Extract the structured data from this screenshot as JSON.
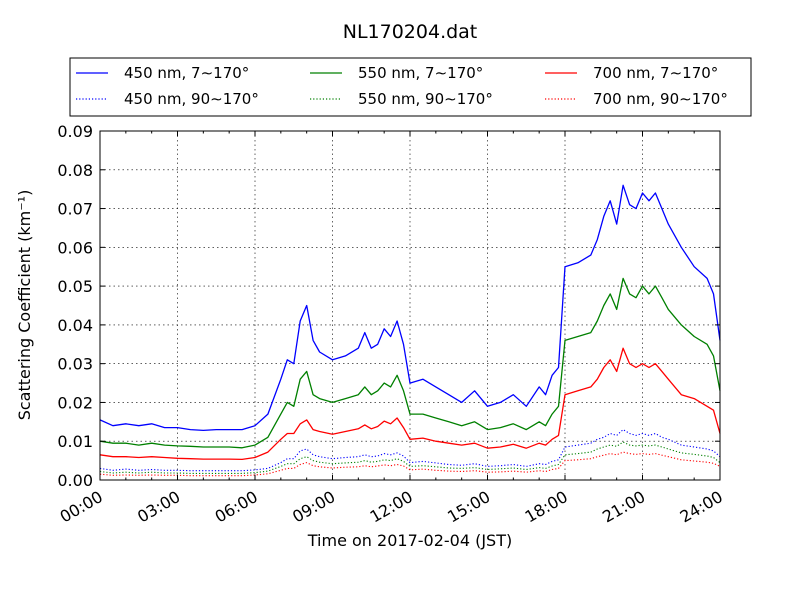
{
  "chart_data": {
    "type": "line",
    "title": "NL170204.dat",
    "xlabel": "Time on 2017-02-04 (JST)",
    "ylabel": "Scattering Coefficient (km⁻¹)",
    "xlim": [
      0,
      24
    ],
    "ylim": [
      0,
      0.09
    ],
    "xtick_labels": [
      "00:00",
      "03:00",
      "06:00",
      "09:00",
      "12:00",
      "15:00",
      "18:00",
      "21:00",
      "24:00"
    ],
    "ytick_labels": [
      "0.00",
      "0.01",
      "0.02",
      "0.03",
      "0.04",
      "0.05",
      "0.06",
      "0.07",
      "0.08",
      "0.09"
    ],
    "grid": true,
    "legend_position": "top, above plot, 3 columns",
    "x_hours": [
      0,
      0.5,
      1,
      1.5,
      2,
      2.5,
      3,
      3.5,
      4,
      4.5,
      5,
      5.5,
      6,
      6.5,
      7,
      7.25,
      7.5,
      7.75,
      8,
      8.25,
      8.5,
      9,
      9.5,
      10,
      10.25,
      10.5,
      10.75,
      11,
      11.25,
      11.5,
      11.75,
      12,
      12.5,
      13,
      13.5,
      14,
      14.5,
      15,
      15.5,
      16,
      16.5,
      17,
      17.25,
      17.5,
      17.75,
      18,
      18.5,
      19,
      19.25,
      19.5,
      19.75,
      20,
      20.25,
      20.5,
      20.75,
      21,
      21.25,
      21.5,
      21.75,
      22,
      22.5,
      23,
      23.5,
      23.75,
      24
    ],
    "series": [
      {
        "name": "450 nm, 7∼170°",
        "color": "#0000ff",
        "style": "solid",
        "values": [
          0.0155,
          0.014,
          0.0145,
          0.014,
          0.0145,
          0.0135,
          0.0135,
          0.013,
          0.0128,
          0.013,
          0.013,
          0.013,
          0.014,
          0.017,
          0.026,
          0.031,
          0.03,
          0.041,
          0.045,
          0.036,
          0.033,
          0.031,
          0.032,
          0.034,
          0.038,
          0.034,
          0.035,
          0.039,
          0.037,
          0.041,
          0.035,
          0.025,
          0.026,
          0.024,
          0.022,
          0.02,
          0.023,
          0.019,
          0.02,
          0.022,
          0.019,
          0.024,
          0.022,
          0.027,
          0.029,
          0.055,
          0.056,
          0.058,
          0.062,
          0.068,
          0.072,
          0.066,
          0.076,
          0.071,
          0.07,
          0.074,
          0.072,
          0.074,
          0.07,
          0.066,
          0.06,
          0.055,
          0.052,
          0.048,
          0.036
        ]
      },
      {
        "name": "550 nm, 7∼170°",
        "color": "#008000",
        "style": "solid",
        "values": [
          0.01,
          0.0095,
          0.0095,
          0.009,
          0.0095,
          0.009,
          0.0088,
          0.0087,
          0.0085,
          0.0085,
          0.0085,
          0.0083,
          0.009,
          0.011,
          0.017,
          0.02,
          0.019,
          0.026,
          0.028,
          0.022,
          0.021,
          0.02,
          0.021,
          0.022,
          0.024,
          0.022,
          0.023,
          0.025,
          0.024,
          0.027,
          0.023,
          0.017,
          0.017,
          0.016,
          0.015,
          0.014,
          0.015,
          0.013,
          0.0135,
          0.0145,
          0.013,
          0.015,
          0.014,
          0.017,
          0.019,
          0.036,
          0.037,
          0.038,
          0.041,
          0.045,
          0.048,
          0.044,
          0.052,
          0.048,
          0.047,
          0.05,
          0.048,
          0.05,
          0.047,
          0.044,
          0.04,
          0.037,
          0.035,
          0.032,
          0.023
        ]
      },
      {
        "name": "700 nm, 7∼170°",
        "color": "#ff0000",
        "style": "solid",
        "values": [
          0.0065,
          0.006,
          0.006,
          0.0058,
          0.006,
          0.0058,
          0.0056,
          0.0055,
          0.0054,
          0.0054,
          0.0054,
          0.0053,
          0.0058,
          0.0072,
          0.0105,
          0.012,
          0.012,
          0.0145,
          0.0155,
          0.013,
          0.0125,
          0.0118,
          0.0125,
          0.0132,
          0.0142,
          0.0132,
          0.0138,
          0.0152,
          0.0145,
          0.016,
          0.0135,
          0.0105,
          0.0108,
          0.01,
          0.0095,
          0.009,
          0.0095,
          0.0082,
          0.0085,
          0.0092,
          0.0082,
          0.0095,
          0.009,
          0.0105,
          0.0115,
          0.022,
          0.023,
          0.024,
          0.026,
          0.029,
          0.031,
          0.028,
          0.034,
          0.03,
          0.029,
          0.03,
          0.029,
          0.03,
          0.028,
          0.026,
          0.022,
          0.021,
          0.019,
          0.018,
          0.012
        ]
      },
      {
        "name": "450 nm, 90∼170°",
        "color": "#0000ff",
        "style": "dotted",
        "values": [
          0.003,
          0.0025,
          0.0028,
          0.0025,
          0.0027,
          0.0025,
          0.0025,
          0.0024,
          0.0024,
          0.0024,
          0.0024,
          0.0024,
          0.0026,
          0.003,
          0.0045,
          0.0055,
          0.0055,
          0.0075,
          0.008,
          0.0065,
          0.006,
          0.0055,
          0.0058,
          0.006,
          0.0065,
          0.006,
          0.0062,
          0.0068,
          0.0065,
          0.007,
          0.0062,
          0.0045,
          0.0048,
          0.0044,
          0.004,
          0.0038,
          0.0042,
          0.0035,
          0.0037,
          0.004,
          0.0035,
          0.0042,
          0.004,
          0.0048,
          0.0052,
          0.0085,
          0.009,
          0.0095,
          0.0105,
          0.011,
          0.012,
          0.0115,
          0.013,
          0.012,
          0.0115,
          0.012,
          0.0115,
          0.012,
          0.011,
          0.0105,
          0.009,
          0.0085,
          0.008,
          0.0075,
          0.006
        ]
      },
      {
        "name": "550 nm, 90∼170°",
        "color": "#008000",
        "style": "dotted",
        "values": [
          0.0022,
          0.0018,
          0.002,
          0.0018,
          0.002,
          0.0018,
          0.0018,
          0.0017,
          0.0017,
          0.0017,
          0.0017,
          0.0017,
          0.0019,
          0.0023,
          0.0035,
          0.0042,
          0.0042,
          0.0055,
          0.006,
          0.005,
          0.0046,
          0.0042,
          0.0044,
          0.0046,
          0.005,
          0.0046,
          0.0048,
          0.0052,
          0.005,
          0.0055,
          0.0048,
          0.0035,
          0.0037,
          0.0034,
          0.0031,
          0.003,
          0.0032,
          0.0027,
          0.0029,
          0.0031,
          0.0027,
          0.0032,
          0.003,
          0.0036,
          0.004,
          0.0065,
          0.0068,
          0.0072,
          0.008,
          0.0085,
          0.009,
          0.0087,
          0.0098,
          0.009,
          0.0088,
          0.009,
          0.0088,
          0.009,
          0.0085,
          0.008,
          0.007,
          0.0066,
          0.0062,
          0.0058,
          0.0045
        ]
      },
      {
        "name": "700 nm, 90∼170°",
        "color": "#ff0000",
        "style": "dotted",
        "values": [
          0.0015,
          0.0012,
          0.0013,
          0.0012,
          0.0013,
          0.0012,
          0.0012,
          0.0011,
          0.0011,
          0.0011,
          0.0011,
          0.0011,
          0.0013,
          0.0016,
          0.0025,
          0.003,
          0.003,
          0.004,
          0.0045,
          0.0037,
          0.0034,
          0.0031,
          0.0033,
          0.0034,
          0.0037,
          0.0034,
          0.0036,
          0.0039,
          0.0037,
          0.004,
          0.0036,
          0.0026,
          0.0028,
          0.0025,
          0.0023,
          0.0022,
          0.0024,
          0.002,
          0.0021,
          0.0023,
          0.002,
          0.0024,
          0.0022,
          0.0027,
          0.003,
          0.005,
          0.0052,
          0.0055,
          0.006,
          0.0064,
          0.0068,
          0.0065,
          0.0072,
          0.0068,
          0.0066,
          0.0068,
          0.0066,
          0.0068,
          0.0064,
          0.006,
          0.0052,
          0.0049,
          0.0046,
          0.0043,
          0.0035
        ]
      }
    ]
  }
}
